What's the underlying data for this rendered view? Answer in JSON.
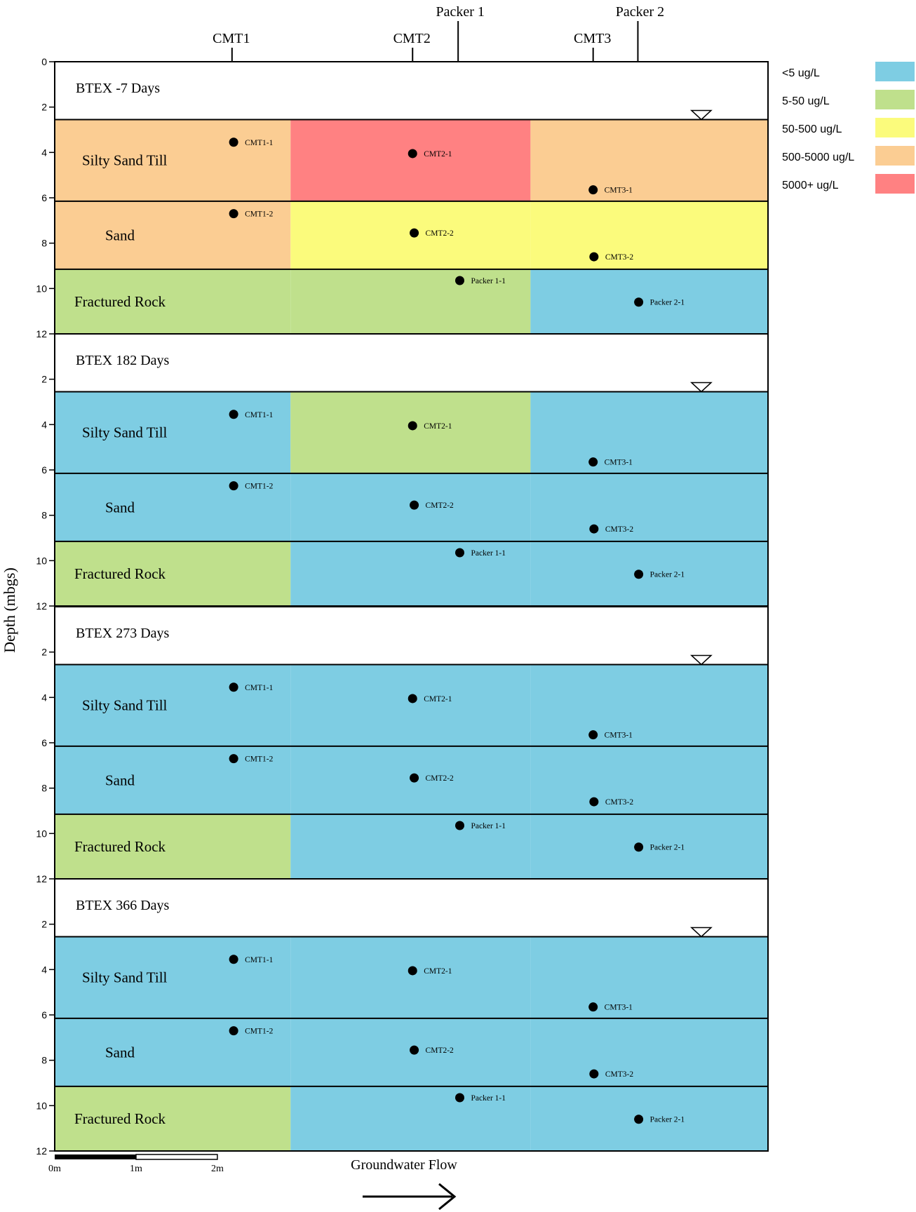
{
  "wells": [
    {
      "name": "CMT1",
      "depth": 0.7,
      "xm": 2.18
    },
    {
      "name": "CMT2",
      "depth": 0.7,
      "xm": 4.4
    },
    {
      "name": "Packer 1",
      "depth": 1.5,
      "xm": 4.96
    },
    {
      "name": "CMT3",
      "depth": 0.7,
      "xm": 6.62
    },
    {
      "name": "Packer 2",
      "depth": 1.5,
      "xm": 7.17
    }
  ],
  "axis": {
    "label": "Depth (mbgs)",
    "ticks": [
      0,
      2,
      4,
      6,
      8,
      10,
      12
    ],
    "ticks_repeat": [
      2,
      4,
      6,
      8,
      10,
      12
    ]
  },
  "legend": [
    {
      "label": "<5 ug/L",
      "color": "#7ecde3"
    },
    {
      "label": "5-50 ug/L",
      "color": "#bfe08c"
    },
    {
      "label": "50-500 ug/L",
      "color": "#fbfb7c"
    },
    {
      "label": "500-5000 ug/L",
      "color": "#fbcd93"
    },
    {
      "label": "5000+ ug/L",
      "color": "#ff8182"
    }
  ],
  "layers": [
    {
      "label": "Silty Sand Till",
      "top": 2.55,
      "bottom": 6.15
    },
    {
      "label": "Sand",
      "top": 6.15,
      "bottom": 9.15
    },
    {
      "label": "Fractured Rock",
      "top": 9.15,
      "bottom": 12.0
    }
  ],
  "water_table_depth": 2.55,
  "zones_xm": [
    0,
    2.9,
    5.85,
    8.77
  ],
  "points": [
    {
      "label": "CMT1-1",
      "xm": 2.2,
      "depth": 3.55
    },
    {
      "label": "CMT2-1",
      "xm": 4.4,
      "depth": 4.05
    },
    {
      "label": "CMT3-1",
      "xm": 6.62,
      "depth": 5.65
    },
    {
      "label": "CMT1-2",
      "xm": 2.2,
      "depth": 6.7
    },
    {
      "label": "CMT2-2",
      "xm": 4.42,
      "depth": 7.55
    },
    {
      "label": "CMT3-2",
      "xm": 6.63,
      "depth": 8.6
    },
    {
      "label": "Packer 1-1",
      "xm": 4.98,
      "depth": 9.65
    },
    {
      "label": "Packer 2-1",
      "xm": 7.18,
      "depth": 10.6
    }
  ],
  "panels": [
    {
      "title": "BTEX -7 Days",
      "levels": [
        [
          3,
          4,
          3
        ],
        [
          3,
          2,
          2
        ],
        [
          1,
          1,
          0
        ]
      ]
    },
    {
      "title": "BTEX 182 Days",
      "levels": [
        [
          0,
          1,
          0
        ],
        [
          0,
          0,
          0
        ],
        [
          1,
          0,
          0
        ]
      ]
    },
    {
      "title": "BTEX 273 Days",
      "levels": [
        [
          0,
          0,
          0
        ],
        [
          0,
          0,
          0
        ],
        [
          1,
          0,
          0
        ]
      ]
    },
    {
      "title": "BTEX 366 Days",
      "levels": [
        [
          0,
          0,
          0
        ],
        [
          0,
          0,
          0
        ],
        [
          1,
          0,
          0
        ]
      ]
    }
  ],
  "scale_bar": {
    "labels": [
      "0m",
      "1m",
      "2m"
    ]
  },
  "flow_label": "Groundwater Flow"
}
